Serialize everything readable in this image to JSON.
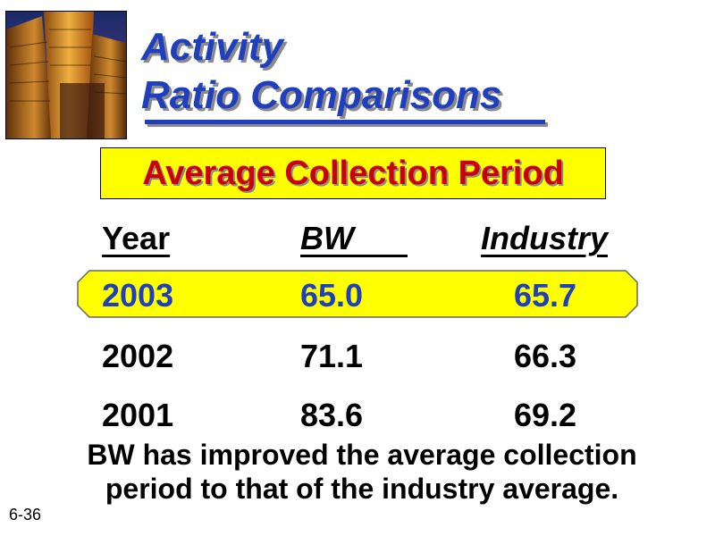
{
  "title": {
    "line1": "Activity",
    "line2": "Ratio Comparisons"
  },
  "subtitle": "Average Collection Period",
  "table": {
    "headers": [
      "Year",
      "BW",
      "Industry"
    ],
    "rows": [
      {
        "year": "2003",
        "bw": "65.0",
        "industry": "65.7",
        "highlighted": true
      },
      {
        "year": "2002",
        "bw": "71.1",
        "industry": "66.3",
        "highlighted": false
      },
      {
        "year": "2001",
        "bw": "83.6",
        "industry": "69.2",
        "highlighted": false
      }
    ]
  },
  "note": {
    "line1": "BW has improved the average collection",
    "line2": "period to that of the industry average."
  },
  "slide_number": "6-36",
  "colors": {
    "title": "#1f3fbf",
    "subtitle_text": "#cc0000",
    "highlight": "#ffff00"
  },
  "icons": [
    "buildings-photo"
  ]
}
